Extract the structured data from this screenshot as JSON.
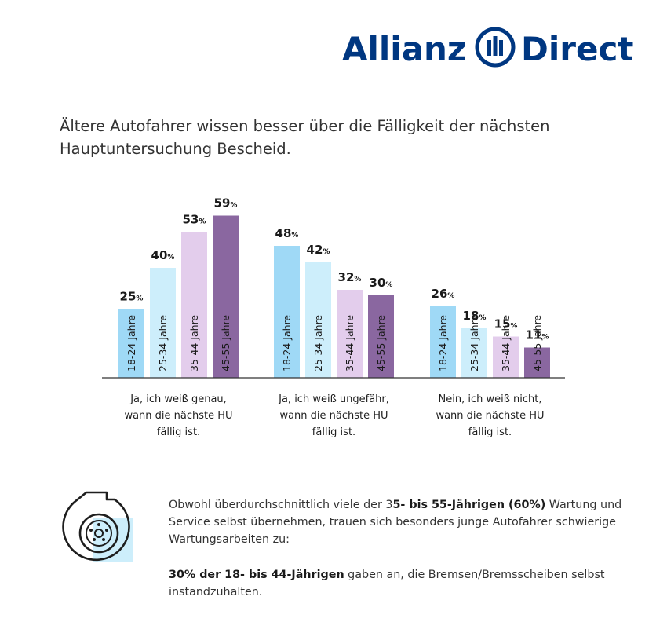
{
  "brand": {
    "name_left": "Allianz",
    "name_right": "Direct",
    "color": "#003781"
  },
  "headline": "Ältere Autofahrer wissen besser über die Fälligkeit der nächsten Hauptuntersuchung Bescheid.",
  "chart_data": {
    "type": "bar",
    "title": "Ältere Autofahrer wissen besser über die Fälligkeit der nächsten Hauptuntersuchung Bescheid.",
    "unit": "%",
    "ylim": [
      0,
      60
    ],
    "categories": [
      [
        "Ja, ich weiß genau,",
        "wann die nächste HU",
        "fällig ist."
      ],
      [
        "Ja, ich weiß ungefähr,",
        "wann die nächste HU",
        "fällig ist."
      ],
      [
        "Nein, ich weiß nicht,",
        "wann die nächste HU",
        "fällig ist."
      ]
    ],
    "series": [
      {
        "name": "18-24 Jahre",
        "color": "#9fd9f6",
        "values": [
          25,
          48,
          26
        ]
      },
      {
        "name": "25-34 Jahre",
        "color": "#cdeefb",
        "values": [
          40,
          42,
          18
        ]
      },
      {
        "name": "35-44 Jahre",
        "color": "#e3cdec",
        "values": [
          53,
          32,
          15
        ]
      },
      {
        "name": "45-55 Jahre",
        "color": "#8a67a0",
        "values": [
          59,
          30,
          11
        ]
      }
    ]
  },
  "notes": {
    "p1_a": "Obwohl überdurchschnittlich viele der 3",
    "p1_b": "5- bis 55-Jährigen (60%)",
    "p1_c": " Wartung und Service selbst übernehmen, trauen sich besonders junge Autofahrer schwierige Wartungsarbeiten zu:",
    "p2_a": "30% der 18- bis 44-Jährigen",
    "p2_b": " gaben an, die Bremsen/Bremsscheiben selbst instandzuhalten."
  },
  "icon": {
    "name": "brake-disc-icon",
    "accent": "#cdeefb"
  }
}
